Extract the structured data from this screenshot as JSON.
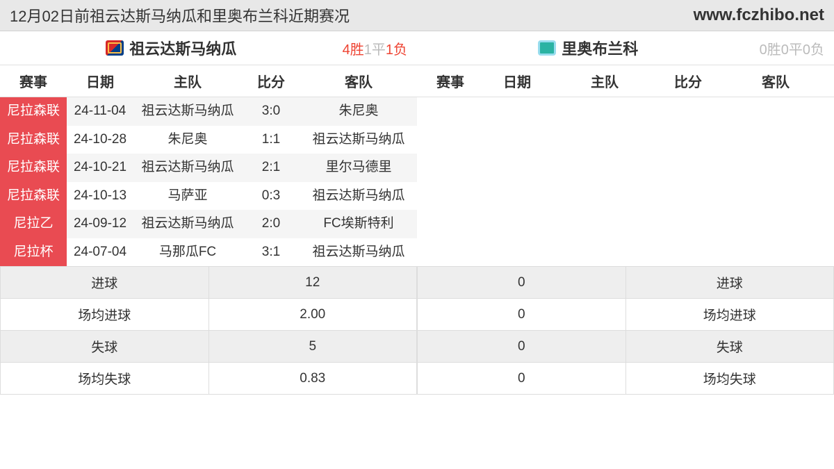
{
  "header": {
    "title": "12月02日前祖云达斯马纳瓜和里奥布兰科近期赛况",
    "url": "www.fczhibo.net"
  },
  "colors": {
    "comp_cell_bg": "#e94b52",
    "comp_cell_fg": "#ffffff",
    "row_odd_bg": "#f5f5f5",
    "row_even_bg": "#ffffff",
    "header_bg": "#e8e8e8",
    "win_color": "#e43",
    "draw_color": "#bbb"
  },
  "left": {
    "team_name": "祖云达斯马纳瓜",
    "record": {
      "win_label": "4胜",
      "draw_label": "1平",
      "lose_label": "1负",
      "lose_zero": false
    },
    "columns": {
      "comp": "赛事",
      "date": "日期",
      "home": "主队",
      "score": "比分",
      "away": "客队"
    },
    "rows": [
      {
        "comp": "尼拉森联",
        "date": "24-11-04",
        "home": "祖云达斯马纳瓜",
        "score": "3:0",
        "away": "朱尼奥"
      },
      {
        "comp": "尼拉森联",
        "date": "24-10-28",
        "home": "朱尼奥",
        "score": "1:1",
        "away": "祖云达斯马纳瓜"
      },
      {
        "comp": "尼拉森联",
        "date": "24-10-21",
        "home": "祖云达斯马纳瓜",
        "score": "2:1",
        "away": "里尔马德里"
      },
      {
        "comp": "尼拉森联",
        "date": "24-10-13",
        "home": "马萨亚",
        "score": "0:3",
        "away": "祖云达斯马纳瓜"
      },
      {
        "comp": "尼拉乙",
        "date": "24-09-12",
        "home": "祖云达斯马纳瓜",
        "score": "2:0",
        "away": "FC埃斯特利"
      },
      {
        "comp": "尼拉杯",
        "date": "24-07-04",
        "home": "马那瓜FC",
        "score": "3:1",
        "away": "祖云达斯马纳瓜"
      }
    ],
    "stats": [
      {
        "label": "进球",
        "value": "12"
      },
      {
        "label": "场均进球",
        "value": "2.00"
      },
      {
        "label": "失球",
        "value": "5"
      },
      {
        "label": "场均失球",
        "value": "0.83"
      }
    ]
  },
  "right": {
    "team_name": "里奥布兰科",
    "record": {
      "win_label": "0胜",
      "draw_label": "0平",
      "lose_label": "0负",
      "lose_zero": true
    },
    "columns": {
      "comp": "赛事",
      "date": "日期",
      "home": "主队",
      "score": "比分",
      "away": "客队"
    },
    "rows": [],
    "stats": [
      {
        "value": "0",
        "label": "进球"
      },
      {
        "value": "0",
        "label": "场均进球"
      },
      {
        "value": "0",
        "label": "失球"
      },
      {
        "value": "0",
        "label": "场均失球"
      }
    ]
  }
}
